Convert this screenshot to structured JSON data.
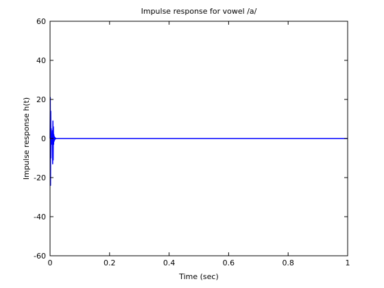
{
  "chart_data": {
    "type": "line",
    "title": "Impulse response for vowel /a/",
    "xlabel": "Time (sec)",
    "ylabel": "Impulse response h(t)",
    "xlim": [
      0,
      1
    ],
    "ylim": [
      -60,
      60
    ],
    "xticks": [
      0,
      0.2,
      0.4,
      0.6,
      0.8,
      1
    ],
    "xtick_labels": [
      "0",
      "0.2",
      "0.4",
      "0.6",
      "0.8",
      "1"
    ],
    "yticks": [
      -60,
      -40,
      -20,
      0,
      20,
      40,
      60
    ],
    "ytick_labels": [
      "-60",
      "-40",
      "-20",
      "0",
      "20",
      "40",
      "60"
    ],
    "grid": false,
    "series": [
      {
        "color": "#0000ff",
        "x": [
          0,
          0.0008,
          0.0016,
          0.0024,
          0.0032,
          0.004,
          0.0048,
          0.0056,
          0.0064,
          0.0072,
          0.008,
          0.0088,
          0.0096,
          0.0104,
          0.0112,
          0.012,
          0.0128,
          0.0136,
          0.0144,
          0.0152,
          0.016,
          0.0168,
          0.0176,
          0.0184,
          0.0192,
          0.02,
          0.025,
          0.03,
          0.04,
          0.05,
          0.1,
          0.2,
          0.3,
          0.4,
          0.5,
          0.6,
          0.7,
          0.8,
          0.9,
          1.0
        ],
        "y": [
          0,
          21,
          -24,
          14,
          -10,
          5,
          -3,
          2,
          1,
          -1,
          4,
          -13,
          9,
          -11,
          6,
          -3,
          2,
          -1.5,
          1,
          -0.8,
          0.6,
          -0.4,
          0.3,
          -0.2,
          0.1,
          -0.05,
          0.02,
          0,
          0,
          0,
          0,
          0,
          0,
          0,
          0,
          0,
          0,
          0,
          0,
          0
        ]
      }
    ]
  }
}
